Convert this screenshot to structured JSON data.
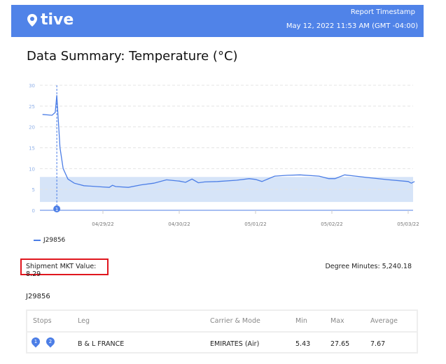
{
  "header": {
    "logo": "tive",
    "timestamp_label": "Report Timestamp",
    "timestamp": "May 12, 2022 11:53 AM (GMT -04:00)"
  },
  "page": {
    "title_bold": "Data Summary:",
    "title_rest": " Temperature (°C)"
  },
  "colors": {
    "header": "#5083e8",
    "line": "#4c7ee6",
    "band": "#d6e4f8",
    "highlight_box": "#e0161e"
  },
  "chart_data": {
    "type": "line",
    "ylim": [
      0,
      30
    ],
    "yticks": [
      0,
      5,
      10,
      15,
      20,
      25,
      30
    ],
    "xticks": [
      "04/29/22",
      "04/30/22",
      "05/01/22",
      "05/02/22",
      "05/03/22"
    ],
    "grid": true,
    "legend_placement": "bottom-left",
    "band": [
      2,
      8
    ],
    "marker": {
      "label": "1",
      "x": "2022-04-28T09:30"
    },
    "series": [
      {
        "name": "J29856",
        "points": [
          [
            "2022-04-28T05:00",
            23.0
          ],
          [
            "2022-04-28T08:00",
            22.8
          ],
          [
            "2022-04-28T09:00",
            23.5
          ],
          [
            "2022-04-28T09:30",
            27.6
          ],
          [
            "2022-04-28T10:30",
            15
          ],
          [
            "2022-04-28T11:30",
            10
          ],
          [
            "2022-04-28T13:00",
            7.5
          ],
          [
            "2022-04-28T15:00",
            6.5
          ],
          [
            "2022-04-28T18:00",
            5.9
          ],
          [
            "2022-04-29T00:00",
            5.6
          ],
          [
            "2022-04-29T02:00",
            5.5
          ],
          [
            "2022-04-29T03:00",
            6.0
          ],
          [
            "2022-04-29T04:00",
            5.7
          ],
          [
            "2022-04-29T08:00",
            5.5
          ],
          [
            "2022-04-29T12:00",
            6.1
          ],
          [
            "2022-04-29T16:00",
            6.5
          ],
          [
            "2022-04-29T20:00",
            7.3
          ],
          [
            "2022-04-30T00:00",
            7.0
          ],
          [
            "2022-04-30T02:00",
            6.7
          ],
          [
            "2022-04-30T04:00",
            7.5
          ],
          [
            "2022-04-30T06:00",
            6.6
          ],
          [
            "2022-04-30T08:00",
            6.8
          ],
          [
            "2022-04-30T12:00",
            6.9
          ],
          [
            "2022-04-30T18:00",
            7.2
          ],
          [
            "2022-04-30T22:00",
            7.6
          ],
          [
            "2022-05-01T00:00",
            7.4
          ],
          [
            "2022-05-01T02:00",
            6.9
          ],
          [
            "2022-05-01T06:00",
            8.2
          ],
          [
            "2022-05-01T10:00",
            8.4
          ],
          [
            "2022-05-01T14:00",
            8.5
          ],
          [
            "2022-05-01T20:00",
            8.2
          ],
          [
            "2022-05-01T23:00",
            7.6
          ],
          [
            "2022-05-02T01:00",
            7.6
          ],
          [
            "2022-05-02T04:00",
            8.5
          ],
          [
            "2022-05-02T12:00",
            7.8
          ],
          [
            "2022-05-02T18:00",
            7.3
          ],
          [
            "2022-05-03T00:00",
            6.9
          ],
          [
            "2022-05-03T01:00",
            6.5
          ],
          [
            "2022-05-03T02:00",
            6.9
          ]
        ]
      }
    ]
  },
  "summary": {
    "mkt": "Shipment MKT Value: 8.29",
    "degree_minutes": "Degree Minutes: 5,240.18",
    "shipment_id": "J29856"
  },
  "table": {
    "headers": [
      "Stops",
      "Leg",
      "Carrier & Mode",
      "Min",
      "Max",
      "Average"
    ],
    "rows": [
      {
        "stops": [
          "1",
          "2"
        ],
        "leg": "B & L FRANCE",
        "carrier": "EMIRATES (Air)",
        "min": "5.43",
        "max": "27.65",
        "average": "7.67"
      }
    ]
  }
}
